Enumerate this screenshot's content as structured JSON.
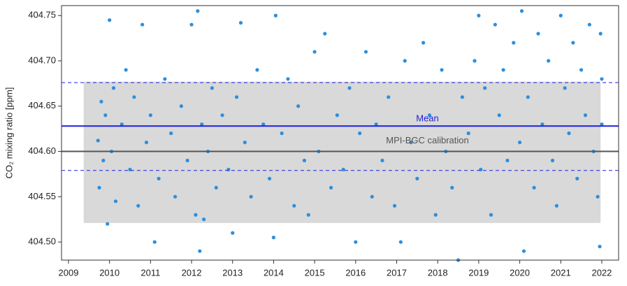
{
  "chart_data": {
    "type": "scatter",
    "ylabel": "CO₂ mixing ratio [ppm]",
    "xlim": [
      2008.83,
      2022.41
    ],
    "ylim": [
      404.48,
      404.761
    ],
    "xticks": [
      2009,
      2010,
      2011,
      2012,
      2013,
      2014,
      2015,
      2016,
      2017,
      2018,
      2019,
      2020,
      2021,
      2022
    ],
    "yticks": [
      {
        "value": 404.5,
        "label": "404.50"
      },
      404.55,
      {
        "value": 404.6,
        "label": "404.60"
      },
      404.65,
      {
        "value": 404.7,
        "label": "404.70"
      },
      404.75
    ],
    "band": {
      "x": [
        2009.37,
        2021.97
      ],
      "y": [
        404.521,
        404.677
      ],
      "color": "#d9d9d9"
    },
    "mean": 404.628,
    "mean_label": "Mean",
    "mean_range": [
      404.579,
      404.676
    ],
    "mean_color": "#2020e0",
    "calibration": 404.6,
    "calibration_label": "MPI-BGC calibration",
    "calibration_color": "#555555",
    "series": [
      {
        "color": "#2b8fde",
        "x": [
          2009.72,
          2009.75,
          2009.8,
          2009.85,
          2009.9,
          2009.95,
          2010.0,
          2010.05,
          2010.1,
          2010.15,
          2010.3,
          2010.4,
          2010.5,
          2010.6,
          2010.7,
          2010.8,
          2010.9,
          2011.0,
          2011.1,
          2011.2,
          2011.35,
          2011.5,
          2011.6,
          2011.75,
          2011.9,
          2012.0,
          2012.1,
          2012.15,
          2012.2,
          2012.25,
          2012.3,
          2012.4,
          2012.5,
          2012.6,
          2012.75,
          2012.9,
          2013.0,
          2013.1,
          2013.2,
          2013.3,
          2013.45,
          2013.6,
          2013.75,
          2013.9,
          2014.0,
          2014.05,
          2014.2,
          2014.35,
          2014.5,
          2014.6,
          2014.75,
          2014.85,
          2015.0,
          2015.1,
          2015.25,
          2015.4,
          2015.55,
          2015.7,
          2015.85,
          2016.0,
          2016.1,
          2016.25,
          2016.4,
          2016.5,
          2016.65,
          2016.8,
          2016.95,
          2017.1,
          2017.2,
          2017.35,
          2017.5,
          2017.65,
          2017.8,
          2017.95,
          2018.1,
          2018.2,
          2018.35,
          2018.5,
          2018.6,
          2018.75,
          2018.9,
          2019.0,
          2019.05,
          2019.15,
          2019.3,
          2019.4,
          2019.5,
          2019.6,
          2019.7,
          2019.85,
          2020.0,
          2020.05,
          2020.1,
          2020.2,
          2020.35,
          2020.45,
          2020.55,
          2020.7,
          2020.8,
          2020.9,
          2021.0,
          2021.1,
          2021.2,
          2021.3,
          2021.4,
          2021.5,
          2021.6,
          2021.7,
          2021.8,
          2021.9,
          2021.95,
          2022.0,
          2022.0,
          2021.97
        ],
        "values": [
          404.612,
          404.56,
          404.655,
          404.59,
          404.64,
          404.52,
          404.745,
          404.6,
          404.67,
          404.545,
          404.63,
          404.69,
          404.58,
          404.66,
          404.54,
          404.74,
          404.61,
          404.64,
          404.5,
          404.57,
          404.68,
          404.62,
          404.55,
          404.65,
          404.59,
          404.74,
          404.53,
          404.755,
          404.49,
          404.63,
          404.525,
          404.6,
          404.67,
          404.56,
          404.64,
          404.58,
          404.51,
          404.66,
          404.742,
          404.61,
          404.55,
          404.69,
          404.63,
          404.57,
          404.505,
          404.75,
          404.62,
          404.68,
          404.54,
          404.65,
          404.59,
          404.53,
          404.71,
          404.6,
          404.73,
          404.56,
          404.64,
          404.58,
          404.67,
          404.5,
          404.62,
          404.71,
          404.55,
          404.63,
          404.59,
          404.66,
          404.54,
          404.5,
          404.7,
          404.61,
          404.57,
          404.72,
          404.64,
          404.53,
          404.69,
          404.6,
          404.56,
          404.48,
          404.66,
          404.62,
          404.7,
          404.75,
          404.58,
          404.67,
          404.53,
          404.74,
          404.64,
          404.69,
          404.59,
          404.72,
          404.61,
          404.755,
          404.49,
          404.66,
          404.56,
          404.73,
          404.63,
          404.7,
          404.59,
          404.54,
          404.75,
          404.67,
          404.62,
          404.72,
          404.57,
          404.69,
          404.64,
          404.74,
          404.6,
          404.55,
          404.495,
          404.68,
          404.63,
          404.73
        ]
      }
    ]
  }
}
